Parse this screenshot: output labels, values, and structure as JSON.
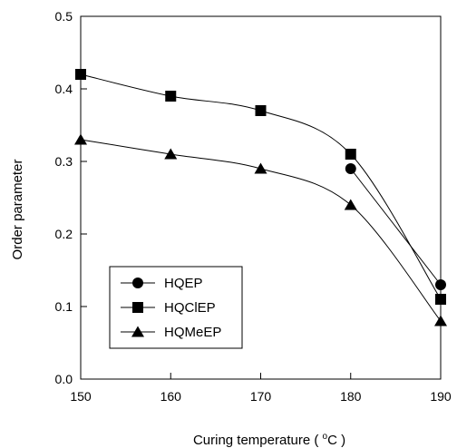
{
  "chart_data": {
    "type": "line",
    "xlabel_main": "Curing temperature ( ",
    "xlabel_sup": "o",
    "xlabel_end": "C )",
    "ylabel": "Order parameter",
    "xlim": [
      150,
      190
    ],
    "ylim": [
      0.0,
      0.5
    ],
    "x_ticks": [
      "150",
      "160",
      "170",
      "180",
      "190"
    ],
    "y_ticks": [
      "0.0",
      "0.1",
      "0.2",
      "0.3",
      "0.4",
      "0.5"
    ],
    "grid": false,
    "legend_position": "bottom-left",
    "series": [
      {
        "name": "HQEP",
        "marker": "circle",
        "x": [
          180,
          190
        ],
        "y": [
          0.29,
          0.13
        ]
      },
      {
        "name": "HQClEP",
        "marker": "square",
        "x": [
          150,
          160,
          170,
          180,
          190
        ],
        "y": [
          0.42,
          0.39,
          0.37,
          0.31,
          0.11
        ]
      },
      {
        "name": "HQMeEP",
        "marker": "triangle",
        "x": [
          150,
          160,
          170,
          180,
          190
        ],
        "y": [
          0.33,
          0.31,
          0.29,
          0.24,
          0.08
        ]
      }
    ],
    "color": "#000000"
  }
}
